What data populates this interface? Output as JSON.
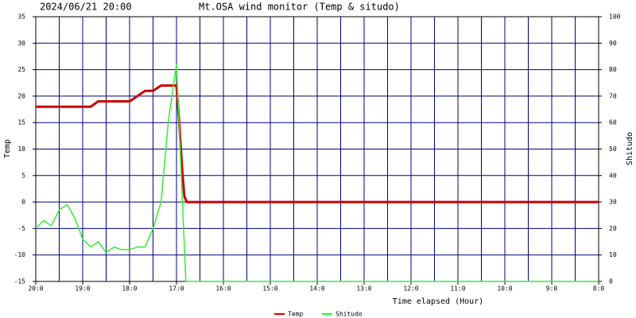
{
  "chart_data": {
    "type": "line",
    "timestamp": "2024/06/21 20:00",
    "title": "Mt.OSA wind monitor (Temp & situdo)",
    "x_label": "Time elapsed (Hour)",
    "y_label": "Temp",
    "y2_label": "Shitudo",
    "xlim": [
      0,
      12
    ],
    "xticks": [
      {
        "value": 0,
        "label": "20:0"
      },
      {
        "value": 1,
        "label": "19:0"
      },
      {
        "value": 2,
        "label": "18:0"
      },
      {
        "value": 3,
        "label": "17:0"
      },
      {
        "value": 4,
        "label": "16:0"
      },
      {
        "value": 5,
        "label": "15:0"
      },
      {
        "value": 6,
        "label": "14:0"
      },
      {
        "value": 7,
        "label": "13:0"
      },
      {
        "value": 8,
        "label": "12:0"
      },
      {
        "value": 9,
        "label": "11:0"
      },
      {
        "value": 10,
        "label": "10:0"
      },
      {
        "value": 11,
        "label": "9:0"
      },
      {
        "value": 12,
        "label": "8:0"
      }
    ],
    "xminor": [
      0.5,
      1.5,
      2.5,
      3.5,
      4.5,
      5.5,
      6.5,
      7.5,
      8.5,
      9.5,
      10.5,
      11.5
    ],
    "ylim": [
      -15,
      35
    ],
    "yticks": [
      -15,
      -10,
      -5,
      0,
      5,
      10,
      15,
      20,
      25,
      30,
      35
    ],
    "y2lim": [
      0,
      100
    ],
    "y2ticks": [
      0,
      10,
      20,
      30,
      40,
      50,
      60,
      70,
      80,
      90,
      100
    ],
    "grid": true,
    "grid_color": "#000080",
    "series": [
      {
        "name": "Temp",
        "color": "#cc0000",
        "x": [
          0,
          1.17,
          1.33,
          2,
          2.33,
          2.5,
          2.67,
          3,
          3.05,
          3.13,
          3.17,
          3.22,
          12
        ],
        "values": [
          18,
          18,
          19,
          19,
          21,
          21,
          22,
          22,
          16,
          5,
          1,
          0,
          0
        ]
      },
      {
        "name": "Shitudo",
        "color": "#33ee33",
        "axis": "y2",
        "x": [
          0,
          0.17,
          0.33,
          0.5,
          0.67,
          0.83,
          1,
          1.17,
          1.33,
          1.5,
          1.67,
          1.83,
          2,
          2.17,
          2.33,
          2.5,
          2.67,
          2.83,
          3,
          3.2,
          12
        ],
        "values": [
          20,
          23,
          21,
          27,
          29,
          24,
          16,
          13,
          15,
          11,
          13,
          12,
          12,
          13,
          13,
          20,
          30,
          61,
          82,
          0,
          0
        ]
      }
    ]
  }
}
